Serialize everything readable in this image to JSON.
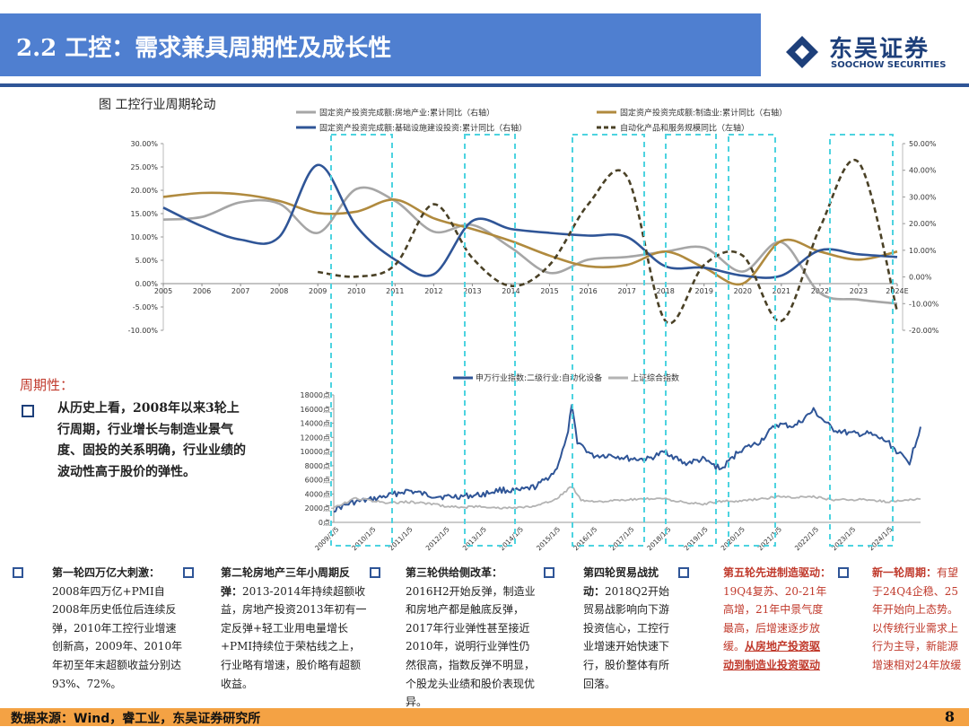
{
  "header": {
    "title": "2.2 工控：需求兼具周期性及成长性"
  },
  "logo": {
    "name_cn": "东吴证券",
    "name_en": "SOOCHOW SECURITIES",
    "brand_color": "#1d3f7a"
  },
  "figure": {
    "title": "图  工控行业周期轮动"
  },
  "chart_data": [
    {
      "type": "line",
      "legend": [
        "固定资产投资完成额:房地产业:累计同比（右轴）",
        "固定资产投资完成额:制造业:累计同比（右轴）",
        "固定资产投资完成额:基础设施建设投资:累计同比（右轴）",
        "自动化产品和服务规模同比（左轴）"
      ],
      "x_ticks": [
        "2005",
        "2006",
        "2007",
        "2008",
        "2009",
        "2010",
        "2011",
        "2012",
        "2013",
        "2014",
        "2015",
        "2016",
        "2017",
        "2018",
        "2019",
        "2020",
        "2021",
        "2022",
        "2023",
        "2024E"
      ],
      "y_left_ticks": [
        "30.00%",
        "25.00%",
        "20.00%",
        "15.00%",
        "10.00%",
        "5.00%",
        "0.00%",
        "-5.00%",
        "-10.00%"
      ],
      "y_left_range": [
        -10,
        30
      ],
      "y_right_ticks": [
        "50.00%",
        "40.00%",
        "30.00%",
        "20.00%",
        "10.00%",
        "0.00%",
        "-10.00%",
        "-20.00%"
      ],
      "y_right_range": [
        -20,
        50
      ],
      "series": [
        {
          "name": "固定资产投资完成额:房地产业:累计同比（右轴）",
          "axis": "right",
          "color": "#a6a6a6",
          "dash": "solid",
          "x": [
            2005,
            2006,
            2007,
            2008,
            2009,
            2010,
            2011,
            2012,
            2013,
            2014,
            2015,
            2016,
            2017,
            2018,
            2019,
            2020,
            2021,
            2022,
            2023,
            2024
          ],
          "values": [
            21.5,
            22.5,
            28,
            27.5,
            16.5,
            33,
            28.5,
            17,
            19.5,
            11,
            1.5,
            6.5,
            7.5,
            9.5,
            11,
            2,
            13,
            -6,
            -8.5,
            -10
          ]
        },
        {
          "name": "固定资产投资完成额:制造业:累计同比（右轴）",
          "axis": "right",
          "color": "#b08a3e",
          "dash": "solid",
          "x": [
            2005,
            2006,
            2007,
            2008,
            2009,
            2010,
            2011,
            2012,
            2013,
            2014,
            2015,
            2016,
            2017,
            2018,
            2019,
            2020,
            2021,
            2022,
            2023,
            2024
          ],
          "values": [
            30,
            31.5,
            31,
            28.5,
            24,
            24.5,
            29,
            22,
            18,
            13.5,
            8,
            4,
            4.5,
            9.5,
            3.5,
            -2.5,
            13.5,
            9.5,
            6.5,
            9.5
          ]
        },
        {
          "name": "固定资产投资完成额:基础设施建设投资:累计同比（右轴）",
          "axis": "right",
          "color": "#2f5597",
          "dash": "solid",
          "x": [
            2005,
            2006,
            2007,
            2008,
            2009,
            2010,
            2011,
            2012,
            2013,
            2014,
            2015,
            2016,
            2017,
            2018,
            2019,
            2020,
            2021,
            2022,
            2023,
            2024
          ],
          "values": [
            26,
            19,
            14,
            15,
            42,
            19,
            6.5,
            1,
            21,
            18,
            16.5,
            15.5,
            15,
            4,
            3.5,
            0.5,
            0.5,
            10,
            8.5,
            7.5
          ]
        },
        {
          "name": "自动化产品和服务规模同比（左轴）",
          "axis": "left",
          "color": "#4a4126",
          "dash": "dashed",
          "x": [
            2009,
            2010,
            2011,
            2012,
            2013,
            2014,
            2015,
            2016,
            2017,
            2018,
            2019,
            2020,
            2021,
            2022,
            2023,
            2024
          ],
          "values": [
            2.5,
            1.5,
            4,
            17,
            5.5,
            -0.5,
            4,
            17,
            23,
            -8,
            4,
            6,
            -8,
            12,
            26,
            -6
          ]
        }
      ]
    },
    {
      "type": "line",
      "legend": [
        "申万行业指数:二级行业:自动化设备",
        "上证综合指数"
      ],
      "y_ticks": [
        "18000点",
        "16000点",
        "14000点",
        "12000点",
        "10000点",
        "8000点",
        "6000点",
        "4000点",
        "2000点",
        "0点"
      ],
      "ylim": [
        0,
        18000
      ],
      "x_ticks": [
        "2009/1/5",
        "2010/1/5",
        "2011/1/5",
        "2012/1/5",
        "2013/1/5",
        "2014/1/5",
        "2015/1/5",
        "2016/1/5",
        "2017/1/5",
        "2018/1/5",
        "2019/1/5",
        "2020/1/5",
        "2021/1/5",
        "2022/1/5",
        "2023/1/5",
        "2024/1/5"
      ],
      "series": [
        {
          "name": "申万行业指数:二级行业:自动化设备",
          "color": "#2f5597",
          "x": [
            2009,
            2009.5,
            2010,
            2010.5,
            2011,
            2011.5,
            2012,
            2012.5,
            2013,
            2013.5,
            2014,
            2014.5,
            2015,
            2015.3,
            2015.45,
            2015.6,
            2016,
            2016.5,
            2017,
            2017.5,
            2018,
            2018.5,
            2019,
            2019.5,
            2020,
            2020.5,
            2021,
            2021.5,
            2022,
            2022.5,
            2023,
            2023.5,
            2024,
            2024.4,
            2024.6,
            2024.9
          ],
          "values": [
            1800,
            2800,
            3200,
            3800,
            4500,
            3900,
            3600,
            3700,
            3900,
            4600,
            4400,
            5100,
            7200,
            11500,
            16200,
            11500,
            9400,
            9500,
            9000,
            8900,
            10000,
            8300,
            8900,
            7500,
            10200,
            11200,
            13800,
            13600,
            15800,
            13200,
            12500,
            12500,
            11400,
            9300,
            8500,
            13500
          ]
        },
        {
          "name": "上证综合指数",
          "color": "#b3b3b3",
          "x": [
            2009,
            2009.6,
            2010,
            2010.5,
            2011,
            2011.5,
            2012,
            2012.5,
            2013,
            2013.5,
            2014,
            2014.5,
            2015,
            2015.45,
            2015.7,
            2016,
            2016.5,
            2017,
            2017.5,
            2018,
            2018.5,
            2019,
            2019.5,
            2020,
            2020.5,
            2021,
            2021.5,
            2022,
            2022.5,
            2023,
            2023.5,
            2024,
            2024.9
          ],
          "values": [
            2000,
            3400,
            3100,
            2700,
            2900,
            2700,
            2300,
            2100,
            2300,
            2000,
            2100,
            2300,
            3200,
            5100,
            3200,
            3000,
            3000,
            3200,
            3300,
            3300,
            2800,
            2600,
            3000,
            3000,
            3300,
            3600,
            3500,
            3600,
            3200,
            3200,
            3200,
            2900,
            3300
          ]
        }
      ]
    }
  ],
  "cycle_section": {
    "label": "周期性：",
    "text": "从历史上看，2008年以来3轮上行周期，行业增长与制造业景气度、固投的关系明确，行业业绩的波动性高于股价的弹性。"
  },
  "rounds": [
    {
      "title": "第一轮四万亿大刺激：",
      "body": "2008年四万亿+PMI自2008年历史低位后连续反弹，2010年工控行业增速创新高，2009年、2010年年初至年末超额收益分别达93%、72%。",
      "underline": ""
    },
    {
      "title": "第二轮房地产三年小周期反弹：",
      "body": "2013-2014年持续超额收益，房地产投资2013年初有一定反弹+轻工业用电量增长+PMI持续位于荣枯线之上，行业略有增速，股价略有超额收益。",
      "underline": ""
    },
    {
      "title": "第三轮供给侧改革：",
      "body": "2016H2开始反弹，制造业和房地产都是触底反弹，2017年行业弹性甚至接近2010年，说明行业弹性仍然很高，指数反弹不明显，个股龙头业绩和股价表现优异。",
      "underline": ""
    },
    {
      "title": "第四轮贸易战扰动：",
      "body": "2018Q2开始贸易战影响向下游投资信心，工控行业增速开始快速下行，股价整体有所回落。",
      "underline": ""
    },
    {
      "title": "第五轮先进制造驱动：",
      "body": "19Q4复苏、20-21年高增，21年中景气度最高，后增速逐步放缓。",
      "underline": "从房地产投资驱动到制造业投资驱动"
    },
    {
      "title": "新一轮周期：",
      "body": "有望于24Q4企稳、25年开始向上态势。以传统行业需求上行为主导，新能源增速相对24年放缓",
      "underline": ""
    }
  ],
  "footer": {
    "source": "数据来源：Wind，睿工业，东吴证券研究所",
    "page": "8"
  }
}
